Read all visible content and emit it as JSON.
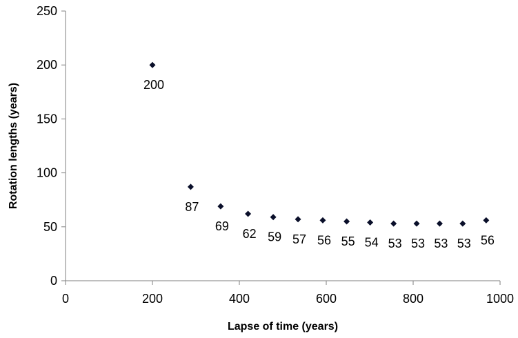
{
  "chart_data": {
    "type": "scatter",
    "title": "",
    "xlabel": "Lapse of time (years)",
    "ylabel": "Rotation lengths (years)",
    "xlim": [
      0,
      1000
    ],
    "ylim": [
      0,
      250
    ],
    "xticks": [
      0,
      200,
      400,
      600,
      800,
      1000
    ],
    "yticks": [
      0,
      50,
      100,
      150,
      200,
      250
    ],
    "grid": false,
    "legend": "none",
    "marker_color": "#0a0f2a",
    "series": [
      {
        "points": [
          {
            "x": 200,
            "y": 200,
            "label": "200"
          },
          {
            "x": 288,
            "y": 87,
            "label": "87"
          },
          {
            "x": 357,
            "y": 69,
            "label": "69"
          },
          {
            "x": 420,
            "y": 62,
            "label": "62"
          },
          {
            "x": 478,
            "y": 59,
            "label": "59"
          },
          {
            "x": 535,
            "y": 57,
            "label": "57"
          },
          {
            "x": 592,
            "y": 56,
            "label": "56"
          },
          {
            "x": 647,
            "y": 55,
            "label": "55"
          },
          {
            "x": 701,
            "y": 54,
            "label": "54"
          },
          {
            "x": 755,
            "y": 53,
            "label": "53"
          },
          {
            "x": 808,
            "y": 53,
            "label": "53"
          },
          {
            "x": 861,
            "y": 53,
            "label": "53"
          },
          {
            "x": 914,
            "y": 53,
            "label": "53"
          },
          {
            "x": 968,
            "y": 56,
            "label": "56"
          }
        ]
      }
    ]
  }
}
